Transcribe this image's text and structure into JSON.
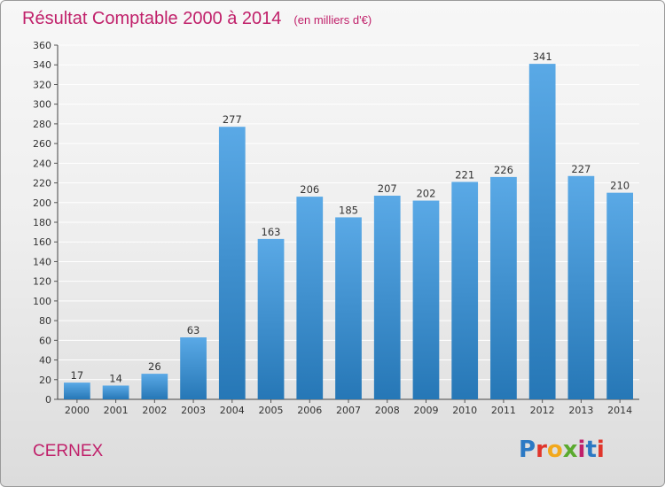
{
  "title": "Résultat Comptable 2000 à 2014",
  "subtitle": "(en milliers d'€)",
  "place": "CERNEX",
  "logo": {
    "text": "Proxiti",
    "letter_colors": [
      "#2b79c4",
      "#e0352b",
      "#f2a81c",
      "#5aaa2e",
      "#c0206a",
      "#2b79c4",
      "#e0352b"
    ]
  },
  "colors": {
    "bar_light": "#5aa9e6",
    "bar_dark": "#2677b6",
    "title": "#c0206a",
    "grid": "#ffffff"
  },
  "chart_data": {
    "type": "bar",
    "title": "Résultat Comptable 2000 à 2014",
    "subtitle": "(en milliers d'€)",
    "xlabel": "",
    "ylabel": "",
    "categories": [
      "2000",
      "2001",
      "2002",
      "2003",
      "2004",
      "2005",
      "2006",
      "2007",
      "2008",
      "2009",
      "2010",
      "2011",
      "2012",
      "2013",
      "2014"
    ],
    "values": [
      17,
      14,
      26,
      63,
      277,
      163,
      206,
      185,
      207,
      202,
      221,
      226,
      341,
      227,
      210
    ],
    "ylim": [
      0,
      360
    ],
    "yticks": [
      0,
      20,
      40,
      60,
      80,
      100,
      120,
      140,
      160,
      180,
      200,
      220,
      240,
      260,
      280,
      300,
      320,
      340,
      360
    ],
    "grid": true,
    "legend": "none"
  }
}
